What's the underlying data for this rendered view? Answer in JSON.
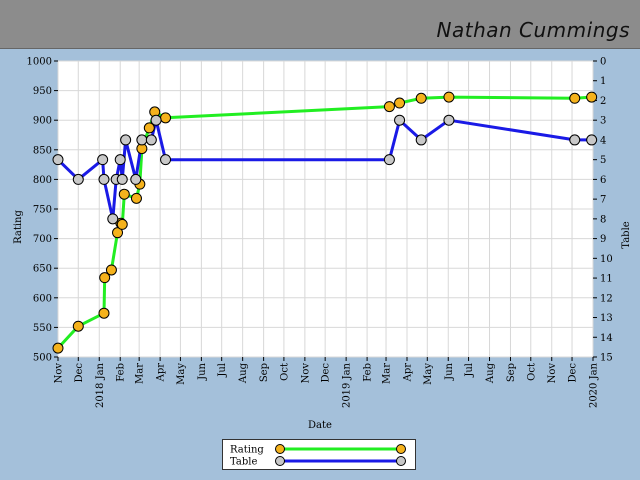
{
  "header": {
    "player_name": "Nathan Cummings"
  },
  "chart_data": {
    "type": "line",
    "xlabel": "Date",
    "ylabel": "Rating",
    "y2label": "Table",
    "ylim": [
      500,
      1000
    ],
    "y2lim": [
      0,
      15
    ],
    "y2_inverted": true,
    "xlim": [
      "2017-11-01",
      "2020-01-01"
    ],
    "grid": true,
    "legend_position": "bottom-center",
    "x_ticks": [
      "Nov",
      "Dec",
      "2018 Jan",
      "Feb",
      "Mar",
      "Apr",
      "May",
      "Jun",
      "Jul",
      "Aug",
      "Sep",
      "Oct",
      "Nov",
      "Dec",
      "2019 Jan",
      "Feb",
      "Mar",
      "Apr",
      "May",
      "Jun",
      "Jul",
      "Aug",
      "Sep",
      "Oct",
      "Nov",
      "Dec",
      "2020 Jan"
    ],
    "y_ticks": [
      500,
      550,
      600,
      650,
      700,
      750,
      800,
      850,
      900,
      950,
      1000
    ],
    "y2_ticks": [
      0,
      1,
      2,
      3,
      4,
      5,
      6,
      7,
      8,
      9,
      10,
      11,
      12,
      13,
      14,
      15
    ],
    "series": [
      {
        "name": "Rating",
        "axis": "left",
        "line_color": "#22ee22",
        "marker_color": "#f5b21c",
        "points": [
          [
            "2017-11-01",
            515
          ],
          [
            "2017-12-01",
            552
          ],
          [
            "2018-01-08",
            574
          ],
          [
            "2018-01-09",
            634
          ],
          [
            "2018-01-19",
            647
          ],
          [
            "2018-01-28",
            710
          ],
          [
            "2018-02-02",
            726
          ],
          [
            "2018-02-04",
            724
          ],
          [
            "2018-02-07",
            775
          ],
          [
            "2018-02-25",
            768
          ],
          [
            "2018-03-02",
            792
          ],
          [
            "2018-03-05",
            852
          ],
          [
            "2018-03-16",
            887
          ],
          [
            "2018-03-24",
            914
          ],
          [
            "2018-04-09",
            904
          ],
          [
            "2019-03-06",
            923
          ],
          [
            "2019-03-21",
            929
          ],
          [
            "2019-04-22",
            937
          ],
          [
            "2019-06-02",
            939
          ],
          [
            "2019-12-05",
            937
          ],
          [
            "2019-12-30",
            939
          ]
        ]
      },
      {
        "name": "Table",
        "axis": "right",
        "line_color": "#1a1ae6",
        "marker_color": "#c8c8c8",
        "points": [
          [
            "2017-11-01",
            5
          ],
          [
            "2017-12-01",
            6
          ],
          [
            "2018-01-06",
            5
          ],
          [
            "2018-01-08",
            6
          ],
          [
            "2018-01-21",
            8
          ],
          [
            "2018-01-26",
            6
          ],
          [
            "2018-02-01",
            5
          ],
          [
            "2018-02-04",
            6
          ],
          [
            "2018-02-09",
            4
          ],
          [
            "2018-02-24",
            6
          ],
          [
            "2018-03-05",
            4
          ],
          [
            "2018-03-19",
            4
          ],
          [
            "2018-03-26",
            3
          ],
          [
            "2018-04-09",
            5
          ],
          [
            "2019-03-06",
            5
          ],
          [
            "2019-03-21",
            3
          ],
          [
            "2019-04-22",
            4
          ],
          [
            "2019-06-02",
            3
          ],
          [
            "2019-12-05",
            4
          ],
          [
            "2019-12-30",
            4
          ]
        ]
      }
    ]
  }
}
